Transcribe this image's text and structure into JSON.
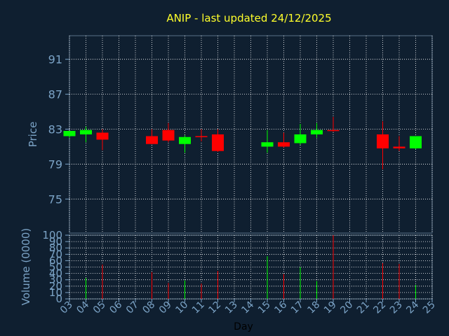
{
  "chart_data": [
    {
      "type": "candlestick",
      "title": "ANIP - last updated 24/12/2025",
      "ylabel": "Price",
      "yticks": [
        75,
        79,
        83,
        87,
        91
      ],
      "ylim": [
        71.1,
        93.7
      ],
      "grid": true,
      "candles": [
        {
          "day": "03",
          "open": 82.2,
          "high": 82.8,
          "low": 82.0,
          "close": 82.8,
          "color": "#00ff00"
        },
        {
          "day": "04",
          "open": 82.4,
          "high": 83.3,
          "low": 81.5,
          "close": 82.9,
          "color": "#00ff00"
        },
        {
          "day": "05",
          "open": 82.6,
          "high": 83.0,
          "low": 80.6,
          "close": 81.8,
          "color": "#ff0000"
        },
        {
          "day": "08",
          "open": 82.2,
          "high": 83.0,
          "low": 81.3,
          "close": 81.3,
          "color": "#ff0000"
        },
        {
          "day": "09",
          "open": 82.9,
          "high": 83.7,
          "low": 81.5,
          "close": 81.7,
          "color": "#ff0000"
        },
        {
          "day": "10",
          "open": 81.3,
          "high": 82.3,
          "low": 80.3,
          "close": 82.1,
          "color": "#00ff00"
        },
        {
          "day": "11",
          "open": 82.2,
          "high": 83.0,
          "low": 81.6,
          "close": 82.1,
          "color": "#ff0000"
        },
        {
          "day": "12",
          "open": 82.4,
          "high": 83.0,
          "low": 80.4,
          "close": 80.5,
          "color": "#ff0000"
        },
        {
          "day": "15",
          "open": 81.0,
          "high": 82.9,
          "low": 80.3,
          "close": 81.5,
          "color": "#00ff00"
        },
        {
          "day": "16",
          "open": 81.5,
          "high": 82.6,
          "low": 80.9,
          "close": 81.0,
          "color": "#ff0000"
        },
        {
          "day": "17",
          "open": 81.4,
          "high": 83.6,
          "low": 81.2,
          "close": 82.4,
          "color": "#00ff00"
        },
        {
          "day": "18",
          "open": 82.4,
          "high": 83.7,
          "low": 82.0,
          "close": 82.9,
          "color": "#00ff00"
        },
        {
          "day": "19",
          "open": 82.9,
          "high": 84.4,
          "low": 82.7,
          "close": 82.8,
          "color": "#ff0000"
        },
        {
          "day": "22",
          "open": 82.4,
          "high": 83.9,
          "low": 78.4,
          "close": 80.8,
          "color": "#ff0000"
        },
        {
          "day": "23",
          "open": 81.0,
          "high": 82.2,
          "low": 80.5,
          "close": 80.8,
          "color": "#ff0000"
        },
        {
          "day": "24",
          "open": 80.8,
          "high": 82.2,
          "low": 80.7,
          "close": 82.2,
          "color": "#00ff00"
        }
      ]
    },
    {
      "type": "bar",
      "ylabel": "Volume (0000)",
      "xlabel": "Day",
      "yticks": [
        0,
        10,
        20,
        30,
        40,
        50,
        60,
        70,
        80,
        90,
        100
      ],
      "ylim": [
        0,
        100
      ],
      "categories": [
        "03",
        "04",
        "05",
        "06",
        "07",
        "08",
        "09",
        "10",
        "11",
        "12",
        "13",
        "14",
        "15",
        "16",
        "17",
        "18",
        "19",
        "20",
        "21",
        "22",
        "23",
        "24",
        "25"
      ],
      "bars": [
        {
          "day": "04",
          "value": 33,
          "color": "#00ff00"
        },
        {
          "day": "05",
          "value": 54,
          "color": "#ff0000"
        },
        {
          "day": "08",
          "value": 42,
          "color": "#ff0000"
        },
        {
          "day": "09",
          "value": 25,
          "color": "#ff0000"
        },
        {
          "day": "10",
          "value": 29,
          "color": "#00ff00"
        },
        {
          "day": "11",
          "value": 24,
          "color": "#ff0000"
        },
        {
          "day": "12",
          "value": 44,
          "color": "#ff0000"
        },
        {
          "day": "15",
          "value": 67,
          "color": "#00ff00"
        },
        {
          "day": "16",
          "value": 39,
          "color": "#ff0000"
        },
        {
          "day": "17",
          "value": 50,
          "color": "#00ff00"
        },
        {
          "day": "18",
          "value": 28,
          "color": "#00ff00"
        },
        {
          "day": "19",
          "value": 100,
          "color": "#ff0000"
        },
        {
          "day": "22",
          "value": 56,
          "color": "#ff0000"
        },
        {
          "day": "23",
          "value": 55,
          "color": "#ff0000"
        },
        {
          "day": "24",
          "value": 22,
          "color": "#00ff00"
        }
      ]
    }
  ],
  "colors": {
    "background": "#0f1f30",
    "text": "#7ba3c6",
    "title": "#ffff2b",
    "grid": "#ffffff",
    "up": "#00ff00",
    "down": "#ff0000"
  }
}
